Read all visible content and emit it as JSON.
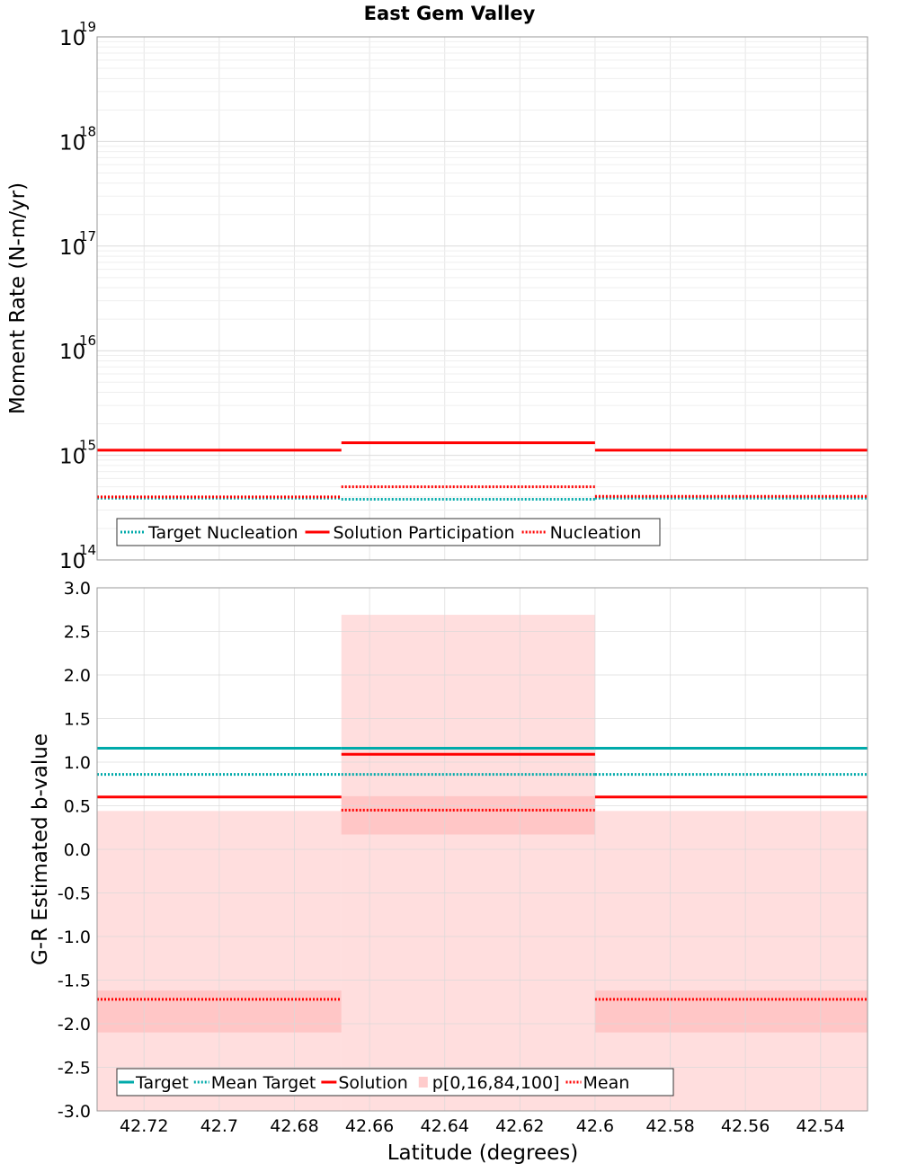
{
  "chart_data": [
    {
      "type": "line",
      "title": "East Gem Valley",
      "ylabel": "Moment Rate (N-m/yr)",
      "xlabel": "",
      "yscale": "log",
      "ylim": [
        100000000000000.0,
        1e+19
      ],
      "xlim": [
        42.7325,
        42.5275
      ],
      "x_reversed": true,
      "grid": true,
      "y_ticks": [
        {
          "base": "10",
          "exp": "14"
        },
        {
          "base": "10",
          "exp": "15"
        },
        {
          "base": "10",
          "exp": "16"
        },
        {
          "base": "10",
          "exp": "17"
        },
        {
          "base": "10",
          "exp": "18"
        },
        {
          "base": "10",
          "exp": "19"
        }
      ],
      "bins": [
        [
          42.7325,
          42.6675
        ],
        [
          42.6675,
          42.6
        ],
        [
          42.6,
          42.5275
        ]
      ],
      "series": [
        {
          "name": "Target Nucleation",
          "style": "dotted",
          "color": "#00AAAA",
          "values": [
            390000000000000.0,
            380000000000000.0,
            390000000000000.0
          ]
        },
        {
          "name": "Solution Participation",
          "style": "solid",
          "color": "#FF0000",
          "values": [
            1120000000000000.0,
            1320000000000000.0,
            1120000000000000.0
          ]
        },
        {
          "name": "Nucleation",
          "style": "dotted",
          "color": "#FF0000",
          "values": [
            400000000000000.0,
            500000000000000.0,
            405000000000000.0
          ]
        }
      ],
      "legend": {
        "position": "bottom-left",
        "entries": [
          "Target Nucleation",
          "Solution Participation",
          "Nucleation"
        ]
      }
    },
    {
      "type": "line",
      "title": "",
      "ylabel": "G-R Estimated b-value",
      "xlabel": "Latitude (degrees)",
      "ylim": [
        -3.0,
        3.0
      ],
      "xlim": [
        42.7325,
        42.5275
      ],
      "x_reversed": true,
      "grid": true,
      "x_ticks": [
        "42.72",
        "42.7",
        "42.68",
        "42.66",
        "42.64",
        "42.62",
        "42.6",
        "42.58",
        "42.56",
        "42.54"
      ],
      "x_tick_values": [
        42.72,
        42.7,
        42.68,
        42.66,
        42.64,
        42.62,
        42.6,
        42.58,
        42.56,
        42.54
      ],
      "y_ticks": [
        "3.0",
        "2.5",
        "2.0",
        "1.5",
        "1.0",
        "0.5",
        "0.0",
        "-0.5",
        "-1.0",
        "-1.5",
        "-2.0",
        "-2.5",
        "-3.0"
      ],
      "y_tick_values": [
        3.0,
        2.5,
        2.0,
        1.5,
        1.0,
        0.5,
        0.0,
        -0.5,
        -1.0,
        -1.5,
        -2.0,
        -2.5,
        -3.0
      ],
      "bins": [
        [
          42.7325,
          42.6675
        ],
        [
          42.6675,
          42.6
        ],
        [
          42.6,
          42.5275
        ]
      ],
      "series": [
        {
          "name": "Target",
          "style": "solid",
          "color": "#00AAAA",
          "values": [
            1.16,
            1.16,
            1.16
          ]
        },
        {
          "name": "Mean Target",
          "style": "dotted",
          "color": "#00AAAA",
          "values": [
            0.86,
            0.86,
            0.86
          ]
        },
        {
          "name": "Solution",
          "style": "solid",
          "color": "#FF0000",
          "values": [
            0.6,
            1.09,
            0.6
          ]
        },
        {
          "name": "Mean",
          "style": "dotted",
          "color": "#FF0000",
          "values": [
            -1.72,
            0.45,
            -1.72
          ]
        }
      ],
      "bands": {
        "name": "p[0,16,84,100]",
        "color": "#FFB6B6",
        "p0_100": [
          [
            -3.0,
            0.44
          ],
          [
            -3.0,
            2.69
          ],
          [
            -3.0,
            0.44
          ]
        ],
        "p16_84": [
          [
            -2.1,
            -1.62
          ],
          [
            0.17,
            0.61
          ],
          [
            -2.1,
            -1.62
          ]
        ]
      },
      "legend": {
        "position": "bottom-left",
        "entries": [
          "Target",
          "Mean Target",
          "Solution",
          "p[0,16,84,100]",
          "Mean"
        ]
      }
    }
  ]
}
